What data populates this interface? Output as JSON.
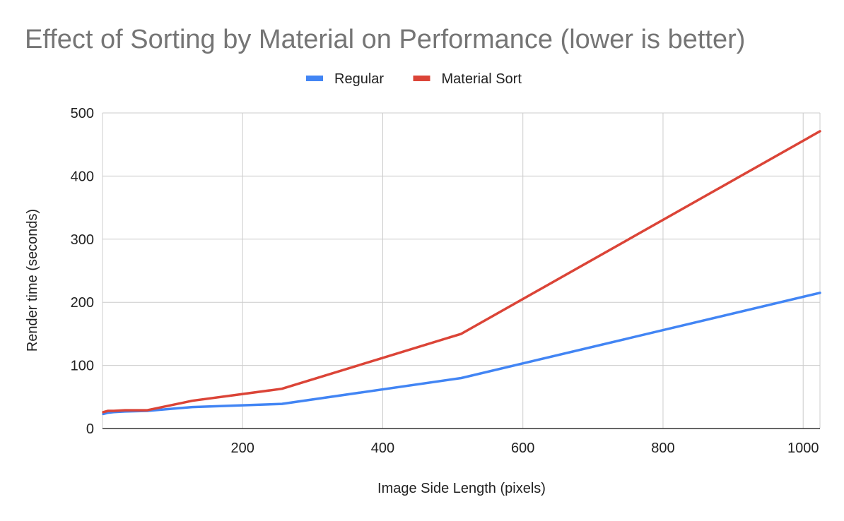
{
  "chart_data": {
    "type": "line",
    "title": "Effect of Sorting by Material on Performance (lower is better)",
    "xlabel": "Image Side Length (pixels)",
    "ylabel": "Render time (seconds)",
    "xlim": [
      0,
      1024
    ],
    "ylim": [
      0,
      500
    ],
    "x_ticks": [
      200,
      400,
      600,
      800,
      1000
    ],
    "y_ticks": [
      0,
      100,
      200,
      300,
      400,
      500
    ],
    "grid": true,
    "legend_position": "top",
    "x": [
      1,
      8,
      16,
      32,
      64,
      128,
      256,
      512,
      1024
    ],
    "series": [
      {
        "name": "Regular",
        "color": "#4285f4",
        "values": [
          23,
          25,
          26,
          27,
          28,
          34,
          39,
          80,
          215
        ]
      },
      {
        "name": "Material Sort",
        "color": "#db4437",
        "values": [
          26,
          28,
          28,
          29,
          29,
          44,
          63,
          150,
          471
        ]
      }
    ]
  }
}
